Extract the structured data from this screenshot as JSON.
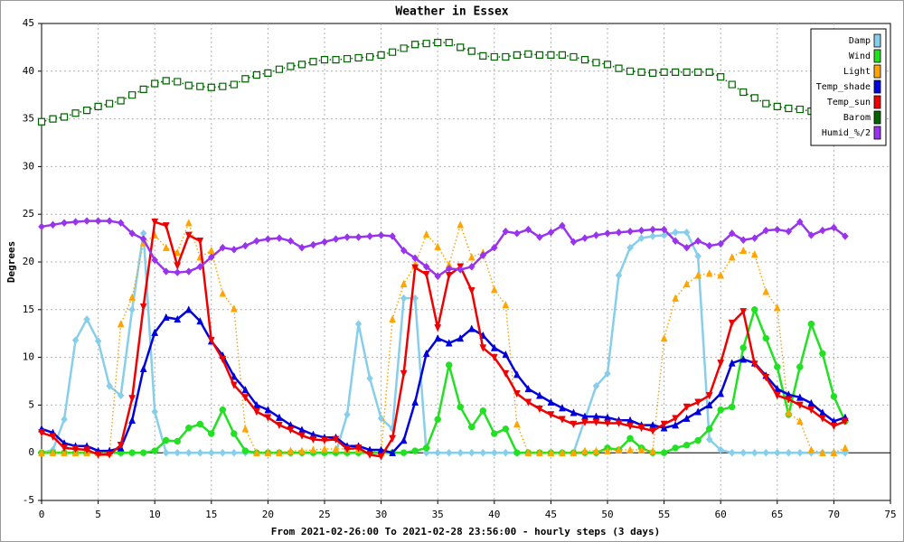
{
  "chart_data": {
    "type": "line",
    "title": "Weather in Essex",
    "ylabel": "Degrees",
    "xlabel": "From 2021-02-26:00 To 2021-02-28 23:56:00 - hourly steps (3 days)",
    "xlim": [
      0,
      75
    ],
    "xticks": [
      0,
      5,
      10,
      15,
      20,
      25,
      30,
      35,
      40,
      45,
      50,
      55,
      60,
      65,
      70,
      75
    ],
    "ylim": [
      -5,
      45
    ],
    "yticks": [
      -5,
      0,
      5,
      10,
      15,
      20,
      25,
      30,
      35,
      40,
      45
    ],
    "grid": true,
    "legend": "upper right",
    "x": [
      0,
      1,
      2,
      3,
      4,
      5,
      6,
      7,
      8,
      9,
      10,
      11,
      12,
      13,
      14,
      15,
      16,
      17,
      18,
      19,
      20,
      21,
      22,
      23,
      24,
      25,
      26,
      27,
      28,
      29,
      30,
      31,
      32,
      33,
      34,
      35,
      36,
      37,
      38,
      39,
      40,
      41,
      42,
      43,
      44,
      45,
      46,
      47,
      48,
      49,
      50,
      51,
      52,
      53,
      54,
      55,
      56,
      57,
      58,
      59,
      60,
      61,
      62,
      63,
      64,
      65,
      66,
      67,
      68,
      69,
      70,
      71
    ],
    "series": [
      {
        "name": "Damp",
        "color": "#87ceeb",
        "marker": "diamond",
        "dashed": false,
        "values": [
          0,
          0.3,
          3.5,
          11.8,
          14,
          11.7,
          7,
          6,
          15,
          23,
          4.3,
          0,
          0,
          0,
          0,
          0,
          0,
          0,
          0,
          0,
          0,
          0,
          0,
          0,
          0,
          0,
          0,
          4,
          13.5,
          7.8,
          3.6,
          2.5,
          16.2,
          16.2,
          0,
          0,
          0,
          0,
          0,
          0,
          0,
          0,
          0,
          0,
          0,
          0,
          0,
          0,
          3.5,
          7,
          8.3,
          18.6,
          21.5,
          22.5,
          22.7,
          22.8,
          23.1,
          23.1,
          20.6,
          1.4,
          0.3,
          0,
          0,
          0,
          0,
          0,
          0,
          0,
          0,
          0,
          0,
          0
        ]
      },
      {
        "name": "Wind",
        "color": "#22e022",
        "marker": "circle",
        "dashed": false,
        "values": [
          0,
          0,
          0,
          0,
          0,
          0,
          0,
          0,
          0,
          0,
          0.2,
          1.3,
          1.2,
          2.6,
          3,
          2,
          4.5,
          2,
          0.2,
          0,
          0,
          0,
          0,
          0,
          0,
          0,
          0,
          0,
          0,
          0,
          0,
          0,
          0,
          0.2,
          0.5,
          3.5,
          9.2,
          4.8,
          2.7,
          4.4,
          2,
          2.5,
          0,
          0,
          0,
          0,
          0,
          0,
          0,
          0,
          0.5,
          0.3,
          1.5,
          0.5,
          0,
          0,
          0.5,
          0.8,
          1.3,
          2.5,
          4.5,
          4.8,
          11,
          15,
          12,
          9,
          4,
          9,
          13.5,
          10.4,
          5.9,
          3.3
        ]
      },
      {
        "name": "Light",
        "color": "#ffa500",
        "marker": "triangle-up",
        "dashed": true,
        "values": [
          0,
          0,
          0,
          0,
          0,
          0,
          0,
          13.5,
          16.3,
          22,
          22.8,
          21.5,
          21,
          24.1,
          20.5,
          21.2,
          16.7,
          15.1,
          2.5,
          0,
          0,
          0,
          0.2,
          0.2,
          0.3,
          0.4,
          0.4,
          0.4,
          0.3,
          0.3,
          0,
          14,
          17.7,
          19.7,
          22.9,
          21.6,
          19.7,
          23.9,
          20.5,
          21,
          17.1,
          15.5,
          3,
          0,
          0,
          0,
          0,
          0,
          0.2,
          0.2,
          0.2,
          0.3,
          0.3,
          0.3,
          0.2,
          12,
          16.2,
          17.7,
          18.6,
          18.8,
          18.6,
          20.5,
          21.2,
          20.8,
          16.9,
          15.2,
          4.2,
          3.3,
          0.3,
          0,
          0,
          0.5
        ]
      },
      {
        "name": "Temp_shade",
        "color": "#0000dd",
        "marker": "triangle-up",
        "dashed": false,
        "values": [
          2.5,
          2.1,
          1,
          0.7,
          0.7,
          0.2,
          0.2,
          0.5,
          3.4,
          8.8,
          12.6,
          14.2,
          14,
          15,
          13.8,
          11.7,
          10.2,
          8,
          6.6,
          5,
          4.5,
          3.7,
          2.9,
          2.4,
          1.9,
          1.6,
          1.6,
          0.7,
          0.7,
          0.3,
          0.3,
          0,
          1.3,
          5.3,
          10.4,
          12,
          11.5,
          12,
          13,
          12.3,
          11,
          10.3,
          8.2,
          6.7,
          6,
          5.3,
          4.7,
          4.2,
          3.8,
          3.8,
          3.7,
          3.4,
          3.4,
          2.9,
          2.9,
          2.6,
          2.9,
          3.6,
          4.3,
          5,
          6.2,
          9.4,
          9.8,
          9.4,
          8.1,
          6.7,
          6.1,
          5.8,
          5.2,
          4.2,
          3.3,
          3.7
        ]
      },
      {
        "name": "Temp_sun",
        "color": "#ee0000",
        "marker": "triangle-down",
        "dashed": false,
        "values": [
          2.1,
          1.7,
          0.5,
          0.4,
          0.3,
          -0.2,
          -0.2,
          0.8,
          5.7,
          15.3,
          24.2,
          23.8,
          19.6,
          22.8,
          22.2,
          11.8,
          9.8,
          7.1,
          5.8,
          4.3,
          3.7,
          2.9,
          2.4,
          1.8,
          1.4,
          1.3,
          1.4,
          0.4,
          0.5,
          -0.2,
          -0.4,
          1.5,
          8.3,
          19.4,
          18.7,
          13.1,
          18.6,
          19.5,
          17,
          11,
          10,
          8.3,
          6.2,
          5.3,
          4.6,
          4,
          3.5,
          3,
          3.2,
          3.2,
          3.1,
          3.1,
          2.8,
          2.6,
          2.3,
          3,
          3.6,
          4.8,
          5.3,
          6,
          9.4,
          13.6,
          14.8,
          9.3,
          7.9,
          6,
          5.6,
          5,
          4.5,
          3.6,
          2.8,
          3.3
        ]
      },
      {
        "name": "Barom",
        "color": "#006400",
        "marker": "square-open",
        "dashed": true,
        "values": [
          34.7,
          35,
          35.2,
          35.6,
          35.9,
          36.3,
          36.6,
          36.9,
          37.5,
          38.1,
          38.7,
          39,
          38.9,
          38.5,
          38.4,
          38.3,
          38.4,
          38.6,
          39.2,
          39.6,
          39.8,
          40.2,
          40.5,
          40.7,
          41,
          41.2,
          41.2,
          41.3,
          41.4,
          41.5,
          41.7,
          42,
          42.4,
          42.8,
          42.9,
          43,
          43,
          42.5,
          42.1,
          41.6,
          41.5,
          41.5,
          41.7,
          41.8,
          41.7,
          41.7,
          41.7,
          41.5,
          41.2,
          40.9,
          40.7,
          40.3,
          40,
          39.9,
          39.8,
          39.9,
          39.9,
          39.9,
          39.9,
          39.9,
          39.4,
          38.6,
          37.8,
          37.2,
          36.6,
          36.3,
          36.1,
          36,
          35.8,
          35.6,
          35.5,
          35.4
        ]
      },
      {
        "name": "Humid_%/2",
        "color": "#9933ee",
        "marker": "diamond",
        "dashed": false,
        "values": [
          23.7,
          23.9,
          24.1,
          24.2,
          24.3,
          24.3,
          24.3,
          24.1,
          23,
          22.4,
          20.2,
          19,
          18.9,
          19,
          19.5,
          20.5,
          21.5,
          21.3,
          21.7,
          22.2,
          22.4,
          22.5,
          22.2,
          21.5,
          21.8,
          22.1,
          22.4,
          22.6,
          22.6,
          22.7,
          22.8,
          22.7,
          21.2,
          20.4,
          19.5,
          18.5,
          19.3,
          19.2,
          19.5,
          20.7,
          21.5,
          23.2,
          23,
          23.4,
          22.6,
          23.1,
          23.8,
          22.1,
          22.5,
          22.8,
          23,
          23.1,
          23.2,
          23.3,
          23.4,
          23.4,
          22.2,
          21.5,
          22.2,
          21.7,
          21.9,
          23,
          22.3,
          22.5,
          23.3,
          23.4,
          23.2,
          24.2,
          22.8,
          23.3,
          23.6,
          22.7
        ]
      }
    ]
  }
}
